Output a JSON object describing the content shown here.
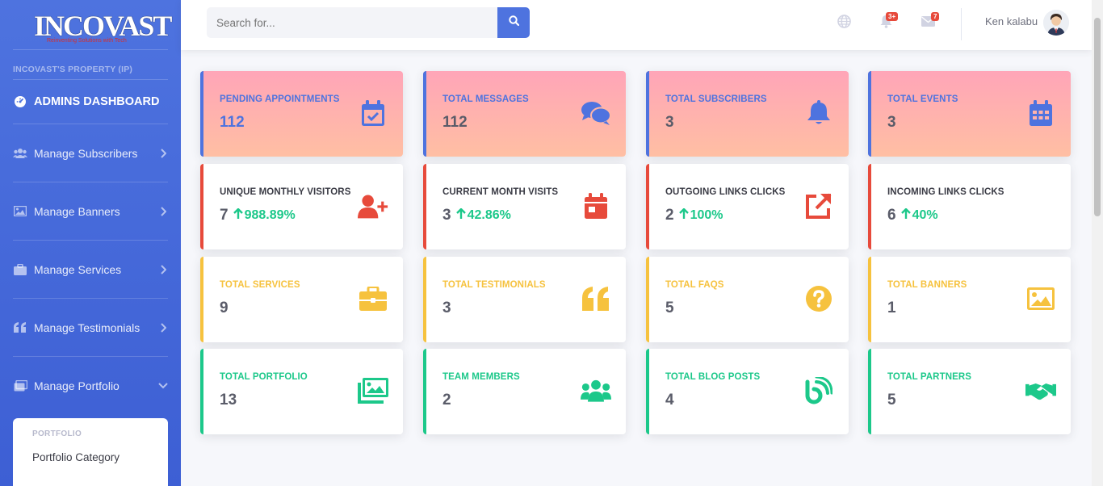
{
  "brand": {
    "logo_text": "INCOVAST",
    "tagline": "Reinventing Solutions with Tech"
  },
  "sidebar": {
    "heading": "INCOVAST'S PROPERTY (IP)",
    "dashboard_label": "ADMINS DASHBOARD",
    "items": [
      {
        "label": "Manage Subscribers",
        "icon": "users-icon"
      },
      {
        "label": "Manage Banners",
        "icon": "image-icon"
      },
      {
        "label": "Manage Services",
        "icon": "briefcase-icon"
      },
      {
        "label": "Manage Testimonials",
        "icon": "quote-icon"
      },
      {
        "label": "Manage Portfolio",
        "icon": "images-icon"
      }
    ],
    "submenu": {
      "heading": "PORTFOLIO",
      "items": [
        "Portfolio Category"
      ]
    }
  },
  "topbar": {
    "search_placeholder": "Search for...",
    "alerts_badge": "3+",
    "messages_badge": "7",
    "user_name": "Ken kalabu"
  },
  "cards": [
    {
      "label": "PENDING APPOINTMENTS",
      "value": "112",
      "icon": "calendar-check-icon"
    },
    {
      "label": "TOTAL MESSAGES",
      "value": "112",
      "icon": "comments-icon"
    },
    {
      "label": "TOTAL SUBSCRIBERS",
      "value": "3",
      "icon": "bell-icon"
    },
    {
      "label": "TOTAL EVENTS",
      "value": "3",
      "icon": "calendar-grid-icon"
    },
    {
      "label": "UNIQUE MONTHLY VISITORS",
      "value": "7",
      "trend": "988.89%",
      "icon": "user-plus-icon"
    },
    {
      "label": "CURRENT MONTH VISITS",
      "value": "3",
      "trend": "42.86%",
      "icon": "calendar-day-icon"
    },
    {
      "label": "OUTGOING LINKS CLICKS",
      "value": "2",
      "trend": "100%",
      "icon": "external-link-icon"
    },
    {
      "label": "INCOMING LINKS CLICKS",
      "value": "6",
      "trend": "40%",
      "icon": "none"
    },
    {
      "label": "TOTAL SERVICES",
      "value": "9",
      "icon": "toolbox-icon"
    },
    {
      "label": "TOTAL TESTIMONIALS",
      "value": "3",
      "icon": "quote-left-icon"
    },
    {
      "label": "TOTAL FAQS",
      "value": "5",
      "icon": "question-circle-icon"
    },
    {
      "label": "TOTAL BANNERS",
      "value": "1",
      "icon": "image-icon"
    },
    {
      "label": "TOTAL PORTFOLIO",
      "value": "13",
      "icon": "images-icon"
    },
    {
      "label": "TEAM MEMBERS",
      "value": "2",
      "icon": "users-icon"
    },
    {
      "label": "TOTAL BLOG POSTS",
      "value": "4",
      "icon": "blog-icon"
    },
    {
      "label": "TOTAL PARTNERS",
      "value": "5",
      "icon": "handshake-icon"
    }
  ],
  "colors": {
    "primary": "#4e73df",
    "danger": "#e74a3b",
    "warning": "#f6c23e",
    "success": "#1cc88a"
  }
}
